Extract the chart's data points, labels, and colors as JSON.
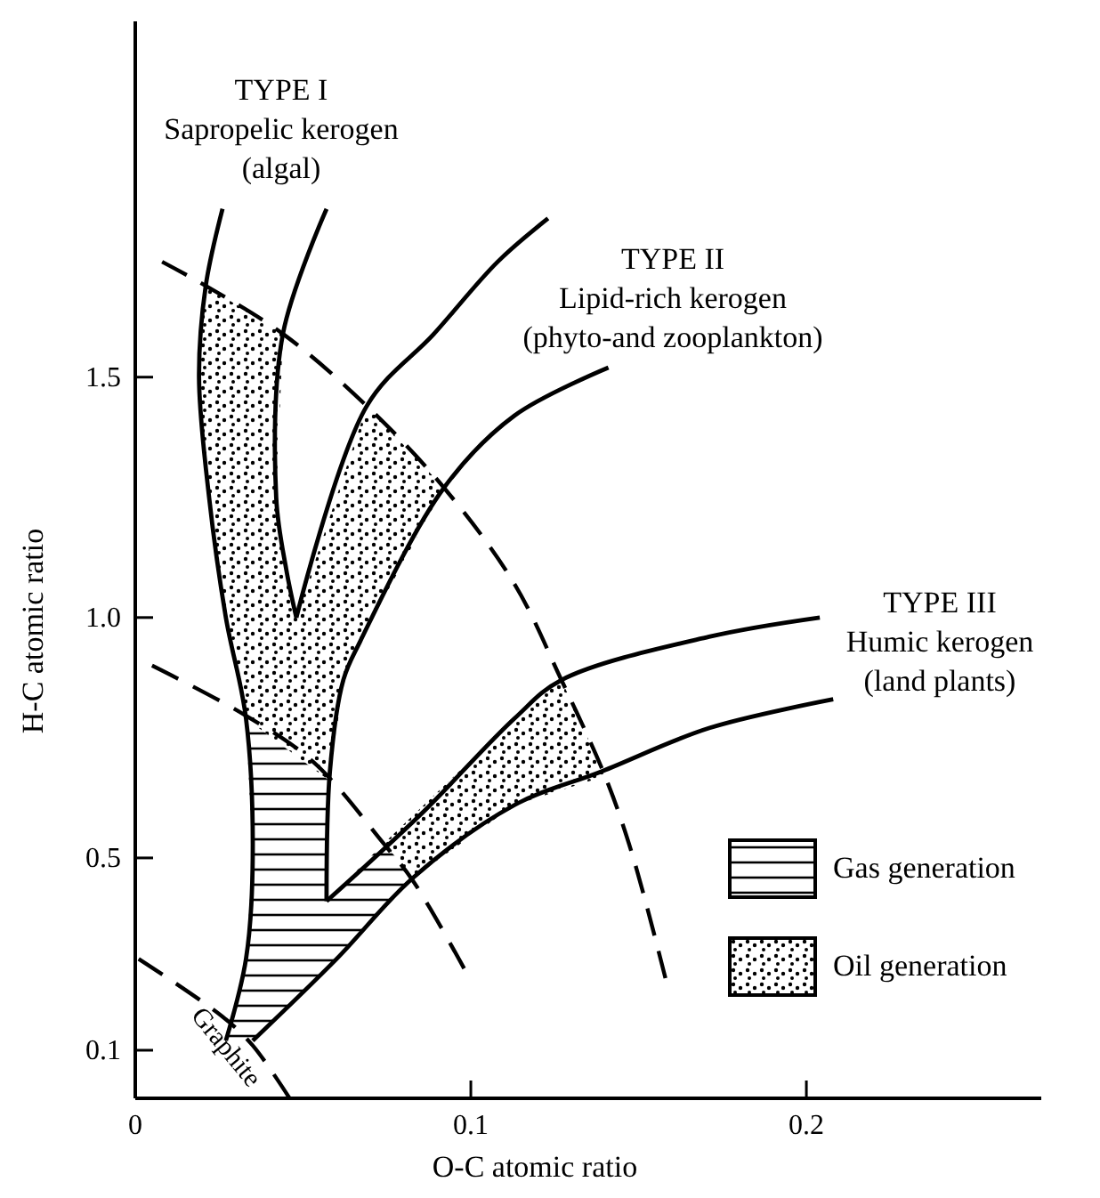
{
  "chart_data": {
    "type": "line",
    "xlabel": "O-C atomic ratio",
    "ylabel": "H-C atomic ratio",
    "xlim": [
      0,
      0.27
    ],
    "ylim": [
      0,
      2.24
    ],
    "xticks": [
      0,
      0.1,
      0.2
    ],
    "yticks": [
      0.1,
      0.5,
      {
        "value": 1,
        "label": "1.0"
      },
      1.5
    ],
    "grid": false,
    "legend": "bottom right",
    "series": [
      {
        "type": "area",
        "name": "Gas generation",
        "color": "#000000",
        "x": [
          0.033,
          0.035,
          0.033,
          0.027,
          0.035,
          0.06,
          0.083,
          0.074,
          0.057,
          0.058
        ],
        "values": [
          0.79,
          0.5,
          0.29,
          0.12,
          0.12,
          0.29,
          0.46,
          0.53,
          0.41,
          0.66
        ]
      },
      {
        "type": "area",
        "name": "Oil generation",
        "color": "#000000",
        "x": [
          0.021,
          0.044,
          0.042,
          0.045,
          0.048,
          0.069,
          0.092,
          0.067,
          0.062,
          0.058,
          0.033,
          0.027,
          0.022,
          0.019,
          null,
          0.074,
          0.113,
          0.127,
          0.14,
          0.113,
          0.083
        ],
        "values": [
          1.69,
          1.59,
          1.25,
          1.1,
          1.0,
          1.44,
          1.27,
          0.95,
          0.87,
          0.66,
          0.79,
          1.0,
          1.25,
          1.5,
          null,
          0.53,
          0.79,
          0.87,
          0.67,
          0.61,
          0.46
        ]
      },
      {
        "color": "#000000",
        "line_style": "solid",
        "x": [
          0.026,
          0.021,
          0.019,
          0.022,
          0.027,
          0.033,
          0.035,
          0.033,
          0.027
        ],
        "values": [
          1.85,
          1.69,
          1.5,
          1.25,
          1.0,
          0.79,
          0.5,
          0.29,
          0.12
        ]
      },
      {
        "color": "#000000",
        "line_style": "solid",
        "x": [
          0.057,
          0.044,
          0.042,
          0.045,
          0.048
        ],
        "values": [
          1.85,
          1.59,
          1.25,
          1.1,
          1.0
        ]
      },
      {
        "color": "#000000",
        "line_style": "solid",
        "x": [
          0.048,
          0.069,
          0.089,
          0.108,
          0.123
        ],
        "values": [
          1.0,
          1.44,
          1.59,
          1.74,
          1.83
        ]
      },
      {
        "color": "#000000",
        "line_style": "solid",
        "x": [
          0.141,
          0.113,
          0.092,
          0.067,
          0.062,
          0.058,
          0.057
        ],
        "values": [
          1.52,
          1.42,
          1.27,
          0.95,
          0.87,
          0.68,
          0.41
        ]
      },
      {
        "color": "#000000",
        "line_style": "solid",
        "x": [
          0.057,
          0.085,
          0.113,
          0.127,
          0.171,
          0.204
        ],
        "values": [
          0.41,
          0.59,
          0.79,
          0.87,
          0.96,
          1.0
        ]
      },
      {
        "color": "#000000",
        "line_style": "solid",
        "x": [
          0.035,
          0.06,
          0.083,
          0.113,
          0.139,
          0.171,
          0.208
        ],
        "values": [
          0.12,
          0.29,
          0.46,
          0.61,
          0.68,
          0.77,
          0.83
        ]
      },
      {
        "color": "#000000",
        "line_style": "dashed",
        "x": [
          0.008,
          0.021,
          0.044,
          0.069,
          0.092,
          0.113,
          0.127,
          0.14,
          0.148,
          0.158
        ],
        "values": [
          1.74,
          1.69,
          1.59,
          1.44,
          1.27,
          1.07,
          0.87,
          0.67,
          0.51,
          0.25
        ]
      },
      {
        "color": "#000000",
        "line_style": "dashed",
        "x": [
          0.005,
          0.032,
          0.053,
          0.074,
          0.083,
          0.098
        ],
        "values": [
          0.9,
          0.8,
          0.7,
          0.53,
          0.45,
          0.27
        ]
      },
      {
        "name": "Graphite",
        "color": "#000000",
        "line_style": "dashed",
        "x": [
          0.001,
          0.026,
          0.035,
          0.046
        ],
        "values": [
          0.29,
          0.17,
          0.11,
          0
        ]
      }
    ],
    "annotations": [
      "TYPE I\nSapropelic kerogen\n(algal)",
      "TYPE II\nLipid-rich kerogen\n(phyto-and zooplankton)",
      "TYPE III\nHumic kerogen\n(land plants)"
    ]
  }
}
